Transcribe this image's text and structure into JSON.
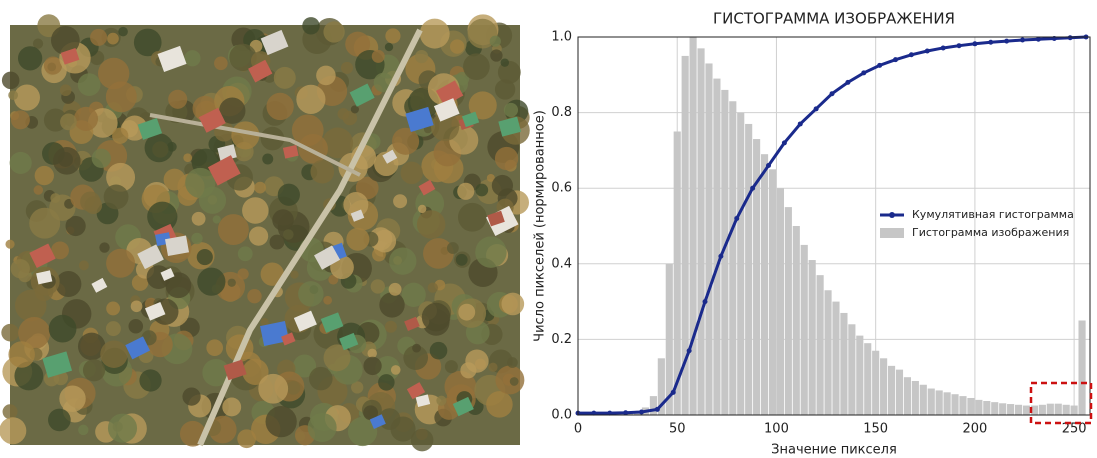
{
  "chart_data": {
    "type": "histogram",
    "title": "ГИСТОГРАММА ИЗОБРАЖЕНИЯ",
    "x_label": "Значение пикселя",
    "y_label": "Число пикселей (нормированное)",
    "xlim": [
      0,
      258
    ],
    "ylim": [
      0,
      1
    ],
    "xticks": [
      0,
      50,
      100,
      150,
      200,
      250
    ],
    "yticks": [
      {
        "value": 0,
        "label": "0.0"
      },
      0.2,
      0.4,
      0.6,
      0.8,
      {
        "value": 1,
        "label": "1.0"
      }
    ],
    "grid": true,
    "legend": "center right",
    "series": [
      {
        "name": "Кумулятивная гистограмма",
        "type": "line",
        "color": "#1a2a8c",
        "x": [
          0,
          8,
          16,
          24,
          32,
          40,
          48,
          56,
          64,
          72,
          80,
          88,
          96,
          104,
          112,
          120,
          128,
          136,
          144,
          152,
          160,
          168,
          176,
          184,
          192,
          200,
          208,
          216,
          224,
          232,
          240,
          248,
          256
        ],
        "values": [
          0.005,
          0.005,
          0.005,
          0.006,
          0.008,
          0.015,
          0.06,
          0.17,
          0.3,
          0.42,
          0.52,
          0.6,
          0.66,
          0.72,
          0.77,
          0.81,
          0.85,
          0.88,
          0.905,
          0.925,
          0.94,
          0.953,
          0.963,
          0.971,
          0.977,
          0.982,
          0.986,
          0.989,
          0.992,
          0.994,
          0.996,
          0.998,
          1.0
        ]
      },
      {
        "name": "Гистограмма изображения",
        "type": "histogram",
        "color": "#c6c6c6",
        "bins": [
          0,
          4,
          8,
          12,
          16,
          20,
          24,
          28,
          32,
          36,
          40,
          44,
          48,
          52,
          56,
          60,
          64,
          68,
          72,
          76,
          80,
          84,
          88,
          92,
          96,
          100,
          104,
          108,
          112,
          116,
          120,
          124,
          128,
          132,
          136,
          140,
          144,
          148,
          152,
          156,
          160,
          164,
          168,
          172,
          176,
          180,
          184,
          188,
          192,
          196,
          200,
          204,
          208,
          212,
          216,
          220,
          224,
          228,
          232,
          236,
          240,
          244,
          248,
          252,
          256
        ],
        "counts": [
          0,
          0,
          0,
          0,
          0,
          0,
          0.005,
          0.01,
          0.02,
          0.05,
          0.15,
          0.4,
          0.75,
          0.95,
          1.0,
          0.97,
          0.93,
          0.89,
          0.86,
          0.83,
          0.8,
          0.77,
          0.73,
          0.69,
          0.65,
          0.6,
          0.55,
          0.5,
          0.45,
          0.41,
          0.37,
          0.33,
          0.3,
          0.27,
          0.24,
          0.21,
          0.19,
          0.17,
          0.15,
          0.13,
          0.12,
          0.1,
          0.09,
          0.08,
          0.07,
          0.065,
          0.06,
          0.055,
          0.05,
          0.045,
          0.04,
          0.037,
          0.034,
          0.031,
          0.029,
          0.027,
          0.025,
          0.025,
          0.027,
          0.03,
          0.03,
          0.027,
          0.025,
          0.25
        ]
      }
    ]
  }
}
